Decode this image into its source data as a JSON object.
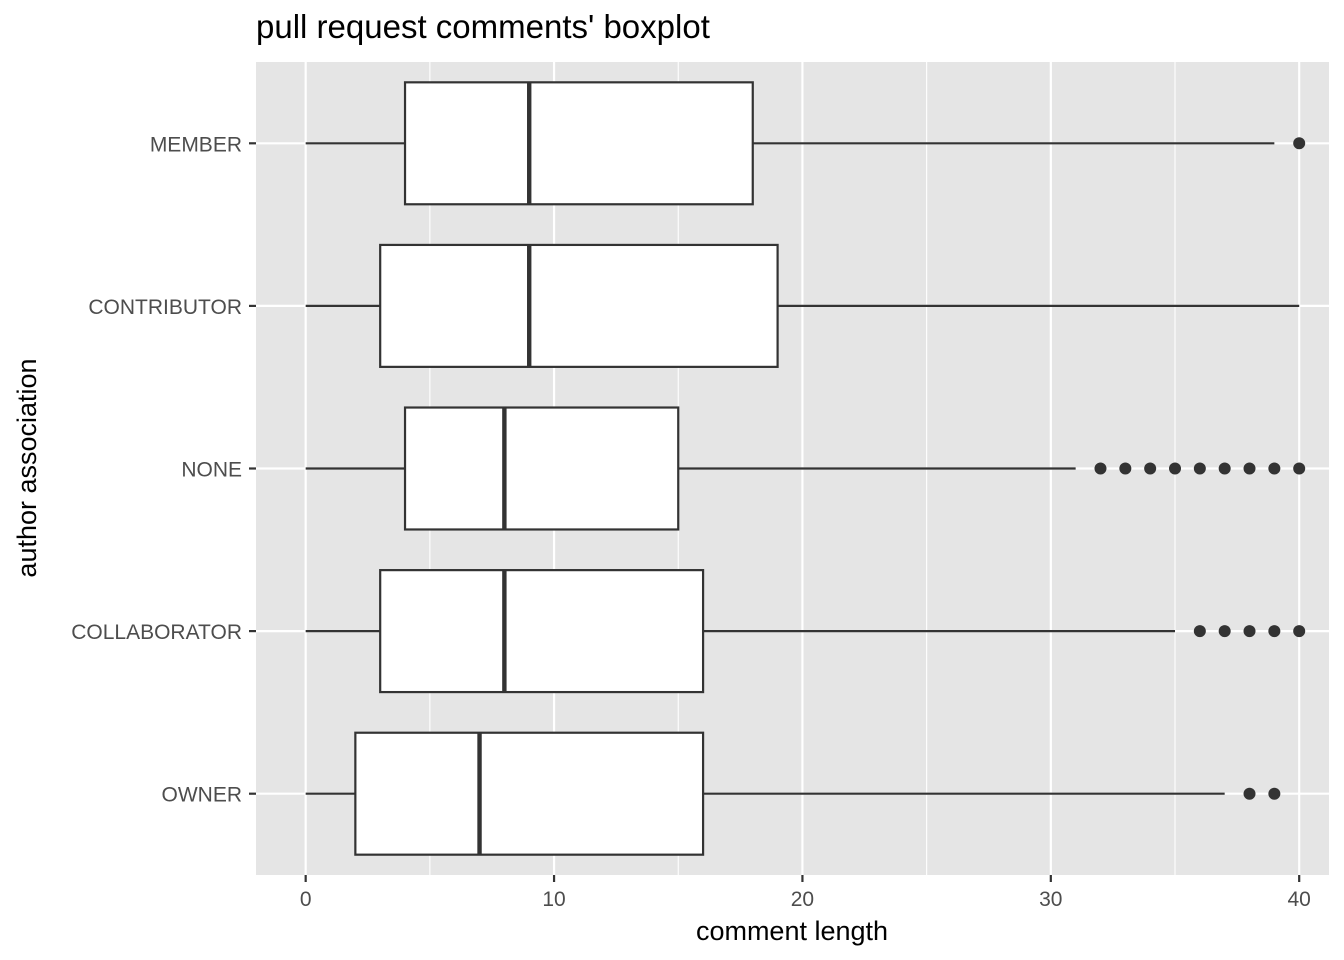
{
  "chart_data": {
    "type": "boxplot",
    "title": "pull request comments' boxplot",
    "xlabel": "comment length",
    "ylabel": "author association",
    "xlim": [
      -2,
      41.2
    ],
    "x_ticks": [
      0,
      10,
      20,
      30,
      40
    ],
    "x_tick_labels": [
      "0",
      "10",
      "20",
      "30",
      "40"
    ],
    "orientation": "horizontal",
    "grid": true,
    "colors": {
      "panel": "#e5e5e5",
      "grid": "#ffffff",
      "box_fill": "#ffffff",
      "box_stroke": "#333333",
      "outlier": "#333333"
    },
    "categories": [
      "MEMBER",
      "CONTRIBUTOR",
      "NONE",
      "COLLABORATOR",
      "OWNER"
    ],
    "boxes": [
      {
        "category": "MEMBER",
        "whisker_low": 0,
        "q1": 4,
        "median": 9,
        "q3": 18,
        "whisker_high": 39,
        "outliers": [
          40
        ]
      },
      {
        "category": "CONTRIBUTOR",
        "whisker_low": 0,
        "q1": 3,
        "median": 9,
        "q3": 19,
        "whisker_high": 40,
        "outliers": []
      },
      {
        "category": "NONE",
        "whisker_low": 0,
        "q1": 4,
        "median": 8,
        "q3": 15,
        "whisker_high": 31,
        "outliers": [
          32,
          33,
          34,
          35,
          36,
          37,
          38,
          39,
          40
        ]
      },
      {
        "category": "COLLABORATOR",
        "whisker_low": 0,
        "q1": 3,
        "median": 8,
        "q3": 16,
        "whisker_high": 35,
        "outliers": [
          36,
          37,
          38,
          39,
          40
        ]
      },
      {
        "category": "OWNER",
        "whisker_low": 0,
        "q1": 2,
        "median": 7,
        "q3": 16,
        "whisker_high": 37,
        "outliers": [
          38,
          39
        ]
      }
    ]
  }
}
